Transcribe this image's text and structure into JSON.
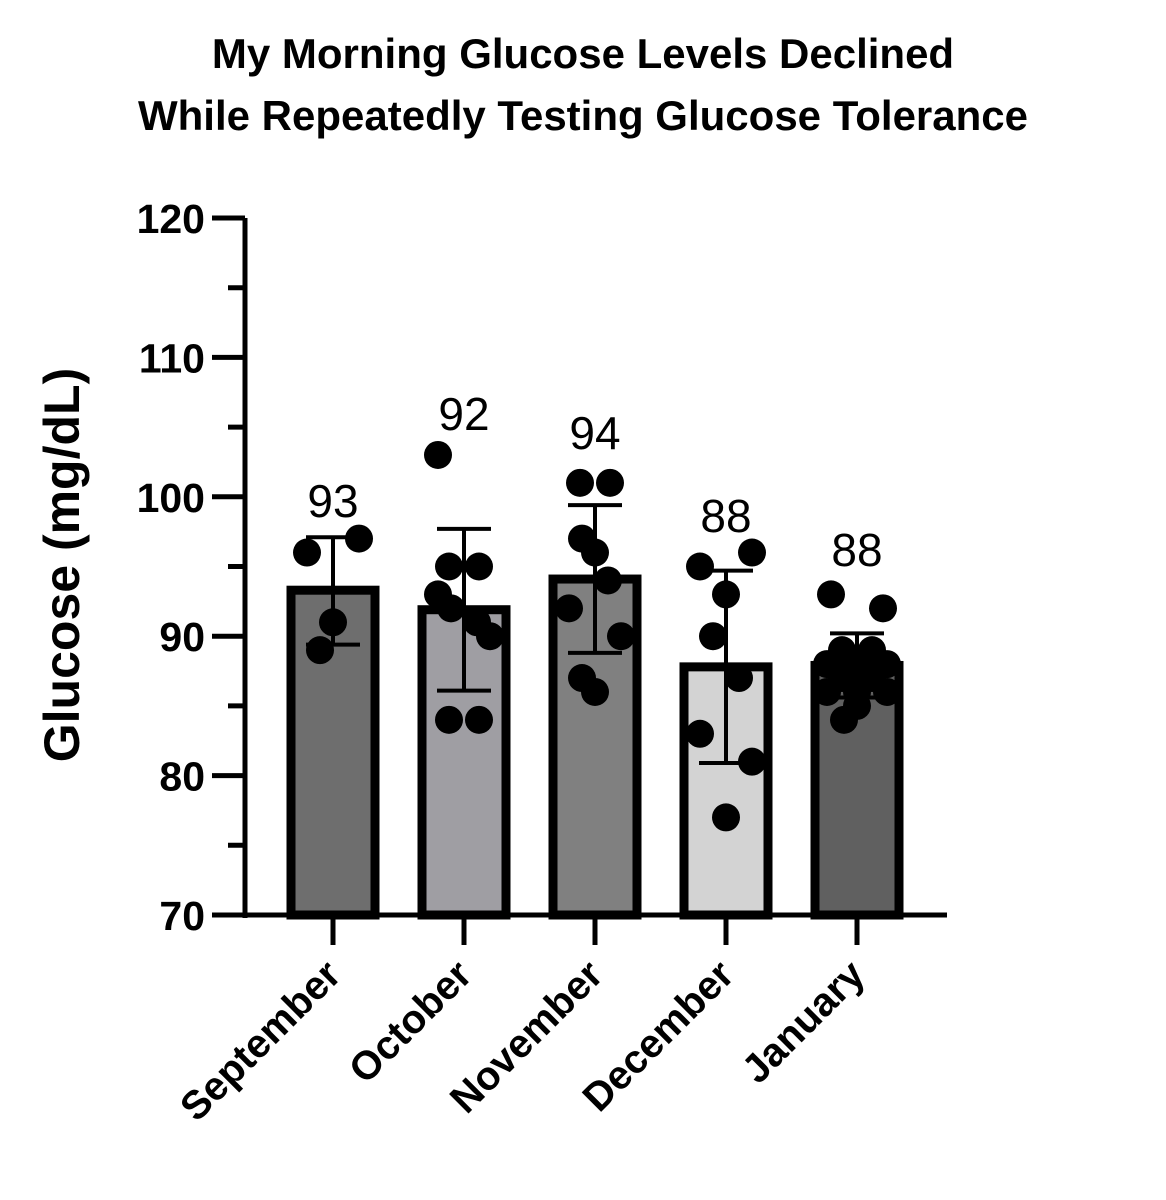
{
  "chart_data": {
    "type": "bar",
    "title_lines": [
      "My Morning Glucose Levels Declined",
      "While Repeatedly Testing Glucose Tolerance"
    ],
    "xlabel": "",
    "ylabel": "Glucose (mg/dL)",
    "ylim": [
      70,
      120
    ],
    "yticks": [
      70,
      80,
      90,
      100,
      110,
      120
    ],
    "categories": [
      "September",
      "October",
      "November",
      "December",
      "January"
    ],
    "values": [
      93.3,
      91.9,
      94.1,
      87.8,
      87.9
    ],
    "value_labels": [
      "93",
      "92",
      "94",
      "88",
      "88"
    ],
    "error": [
      {
        "low": 89.4,
        "high": 97.1
      },
      {
        "low": 86.1,
        "high": 97.7
      },
      {
        "low": 88.8,
        "high": 99.4
      },
      {
        "low": 80.9,
        "high": 94.7
      },
      {
        "low": 85.6,
        "high": 90.2
      }
    ],
    "points": [
      [
        96,
        97,
        91,
        89
      ],
      [
        103,
        95,
        95,
        92,
        91,
        93,
        90,
        84,
        84
      ],
      [
        101,
        101,
        96,
        97,
        94,
        92,
        90,
        86,
        87
      ],
      [
        95,
        96,
        93,
        90,
        87,
        83,
        81,
        77
      ],
      [
        93,
        92,
        89,
        89,
        88,
        88,
        88,
        87,
        87,
        86,
        86,
        86,
        85,
        84
      ]
    ],
    "bar_colors": [
      "#6e6e6e",
      "#9f9ea3",
      "#808080",
      "#d3d3d3",
      "#606060"
    ],
    "grid": false,
    "legend": "none"
  }
}
